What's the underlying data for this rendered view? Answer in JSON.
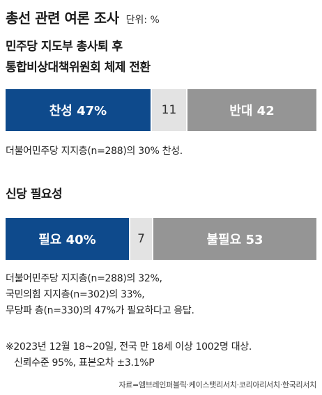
{
  "title": "총선 관련 여론 조사",
  "unit": "단위: %",
  "chart_data": [
    {
      "type": "bar",
      "stacked": true,
      "orientation": "horizontal",
      "title": "민주당 지도부 총사퇴 후 통합비상대책위원회 체제 전환",
      "title_lines": [
        "민주당 지도부 총사퇴 후",
        "통합비상대책위원회 체제 전환"
      ],
      "segments": [
        {
          "name": "찬성",
          "value": 47,
          "label": "찬성 47%",
          "color": "#0e4a8c"
        },
        {
          "name": "",
          "value": 11,
          "label": "11",
          "color": "#e3e3e3"
        },
        {
          "name": "반대",
          "value": 42,
          "label": "반대 42",
          "color": "#959595"
        }
      ],
      "note_lines": [
        "더불어민주당 지지층(n=288)의 30% 찬성."
      ]
    },
    {
      "type": "bar",
      "stacked": true,
      "orientation": "horizontal",
      "title": "신당 필요성",
      "title_lines": [
        "신당 필요성"
      ],
      "segments": [
        {
          "name": "필요",
          "value": 40,
          "label": "필요 40%",
          "color": "#0e4a8c"
        },
        {
          "name": "",
          "value": 7,
          "label": "7",
          "color": "#e3e3e3"
        },
        {
          "name": "불필요",
          "value": 53,
          "label": "불필요 53",
          "color": "#959595"
        }
      ],
      "note_lines": [
        "더불어민주당 지지층(n=288)의 32%,",
        "국민의힘 지지층(n=302)의 33%,",
        "무당파 층(n=330)의 47%가 필요하다고 응답."
      ]
    }
  ],
  "footnote_lines": [
    "※2023년 12월 18~20일, 전국 만 18세 이상 1002명 대상.",
    "신뢰수준 95%, 표본오차 ±3.1%P"
  ],
  "source": "자료=엠브레인퍼블릭·케이스탯리서치·코리아리서치·한국리서치"
}
